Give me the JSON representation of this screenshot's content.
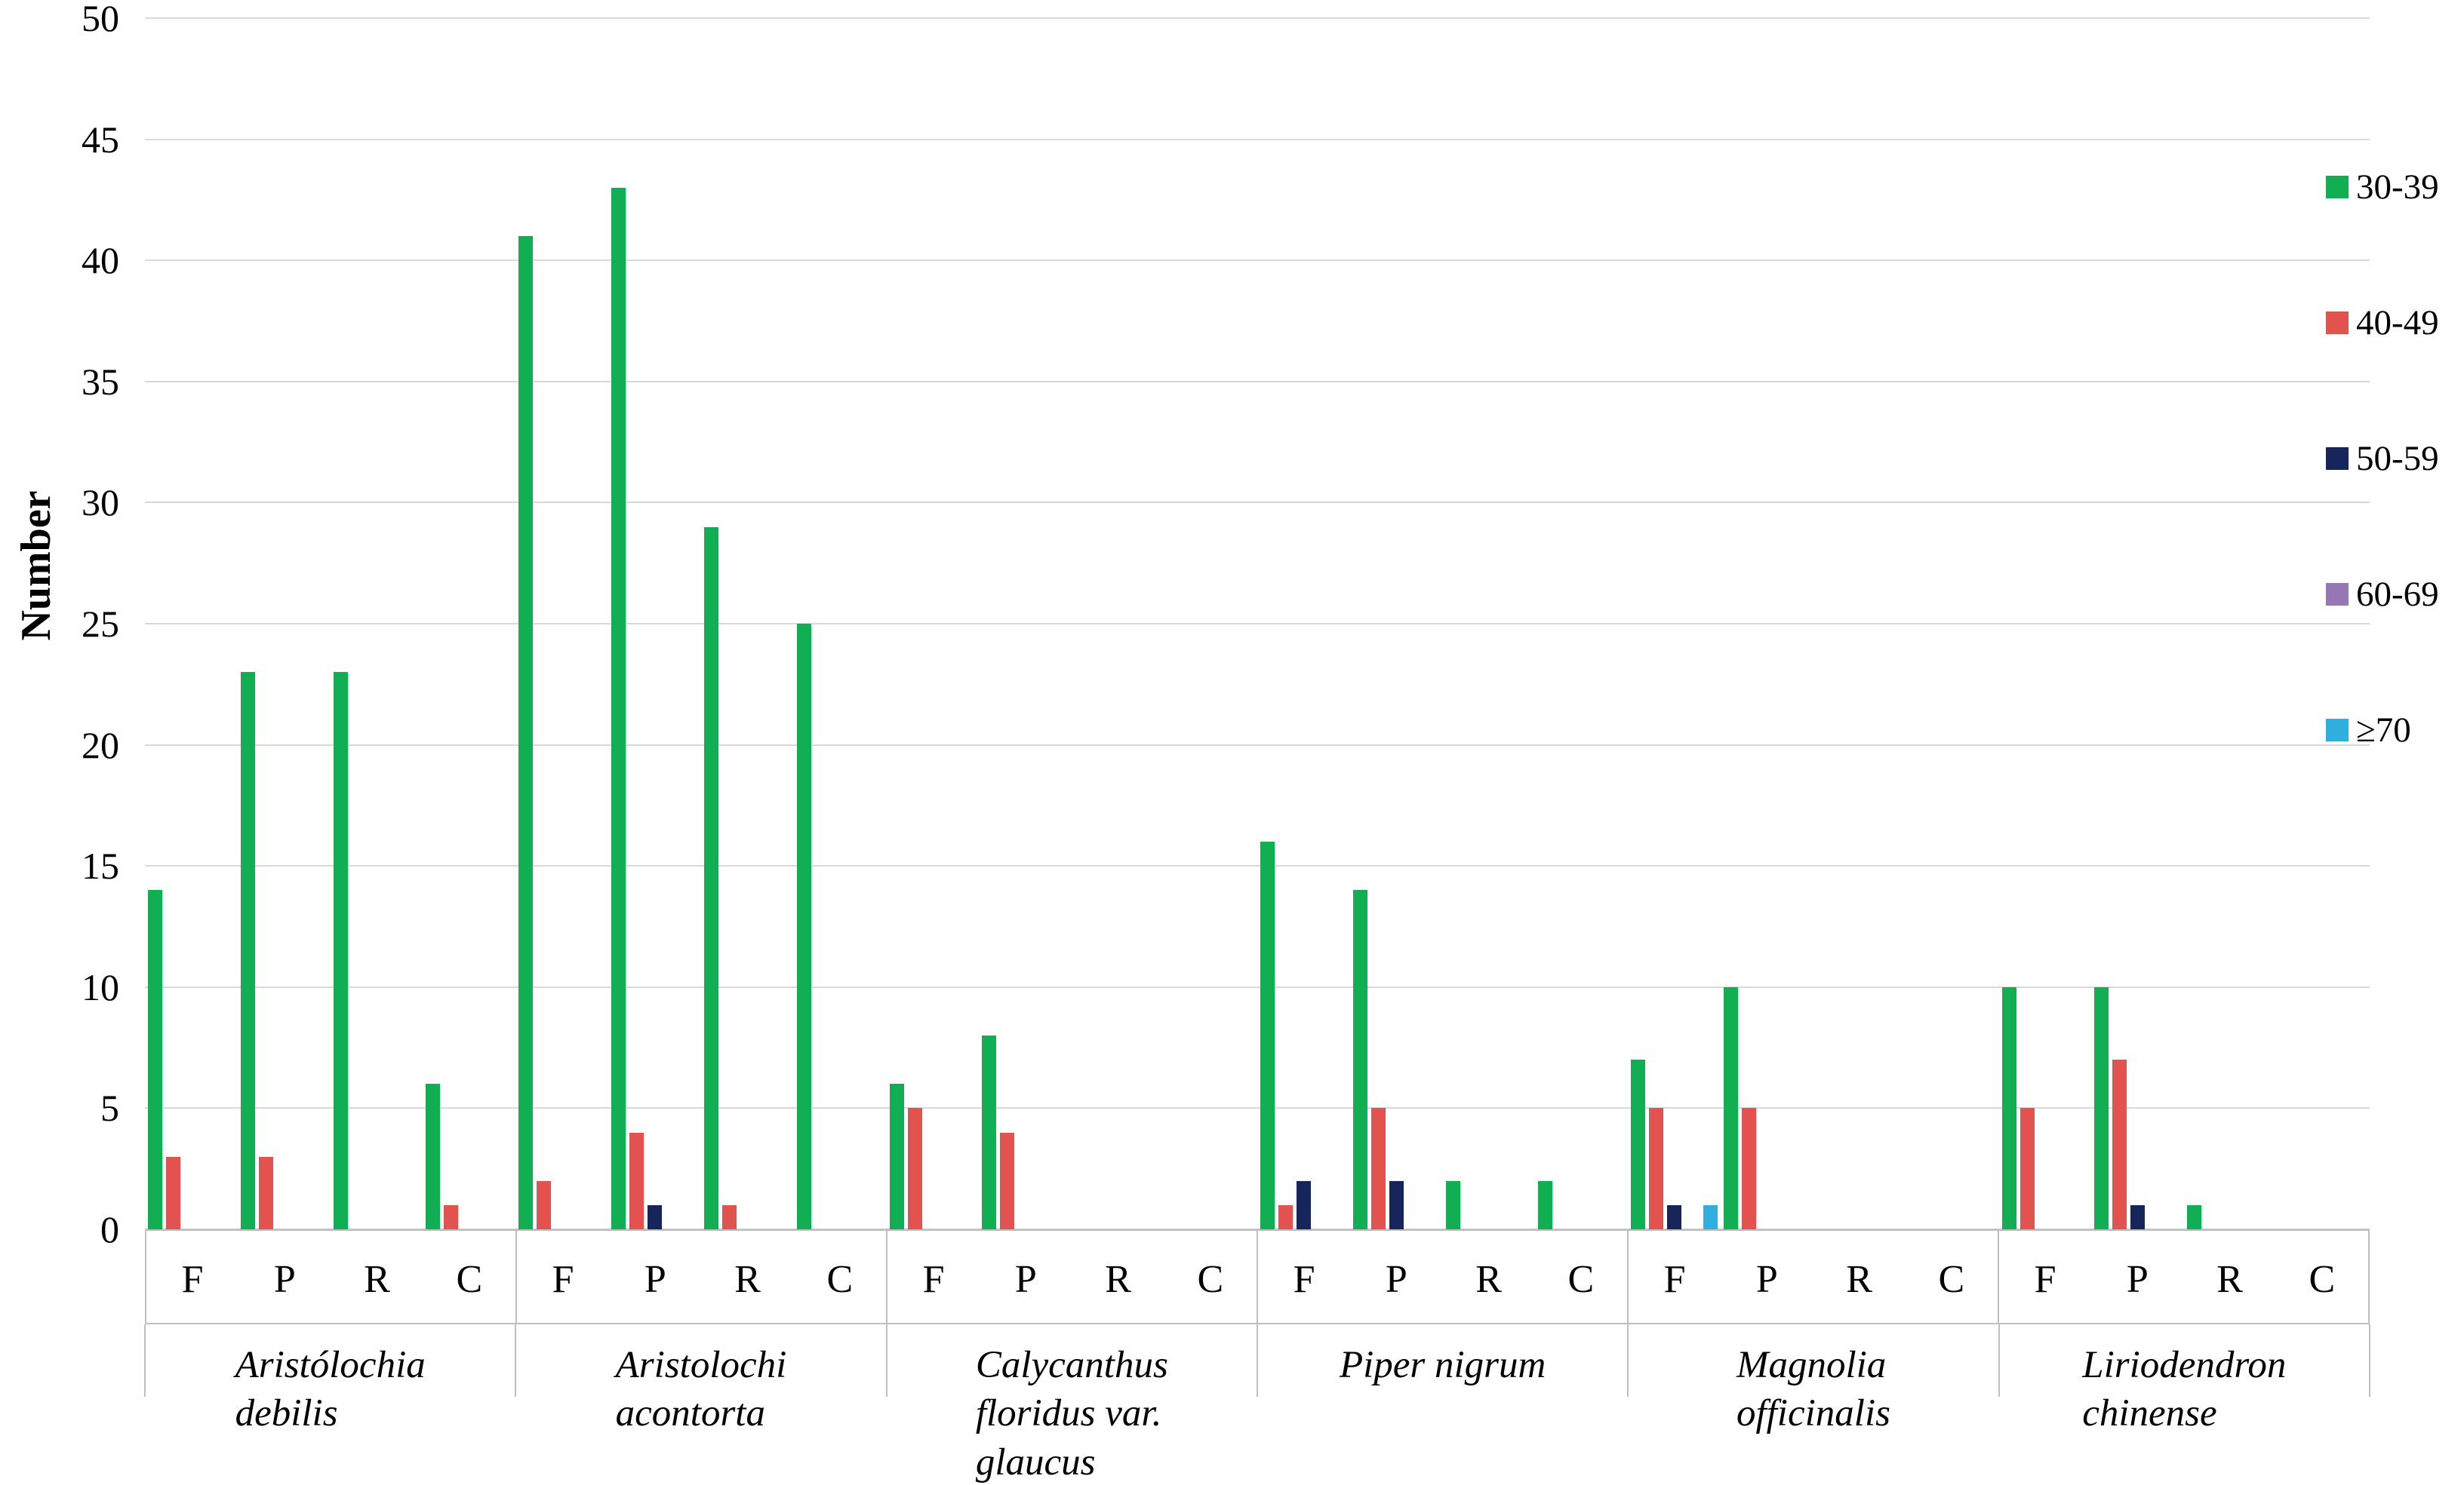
{
  "chart_data": {
    "type": "bar",
    "title": "",
    "ylabel": "Number",
    "ylim": [
      0,
      50
    ],
    "ytick_step": 5,
    "yticks": [
      "0",
      "5",
      "10",
      "15",
      "20",
      "25",
      "30",
      "35",
      "40",
      "45",
      "50"
    ],
    "grid": true,
    "legend_position": "right",
    "categories": [
      "F",
      "P",
      "R",
      "C"
    ],
    "series": [
      {
        "name": "30-39",
        "color": "#12ae53"
      },
      {
        "name": "40-49",
        "color": "#e2524e"
      },
      {
        "name": "50-59",
        "color": "#16265b"
      },
      {
        "name": "60-69",
        "color": "#9577b5"
      },
      {
        "name": "≥70",
        "color": "#2eafde"
      }
    ],
    "groups": [
      {
        "species": "Aristólochia debilis",
        "label_lines": [
          "Aristólochia",
          "debilis"
        ],
        "values": {
          "F": [
            14,
            3,
            0,
            0,
            0
          ],
          "P": [
            23,
            3,
            0,
            0,
            0
          ],
          "R": [
            23,
            0,
            0,
            0,
            0
          ],
          "C": [
            6,
            1,
            0,
            0,
            0
          ]
        }
      },
      {
        "species": "Aristolochi acontorta",
        "label_lines": [
          "Aristolochi",
          "acontorta"
        ],
        "values": {
          "F": [
            41,
            2,
            0,
            0,
            0
          ],
          "P": [
            43,
            4,
            1,
            0,
            0
          ],
          "R": [
            29,
            1,
            0,
            0,
            0
          ],
          "C": [
            25,
            0,
            0,
            0,
            0
          ]
        }
      },
      {
        "species": "Calycanthus floridus var. glaucus",
        "label_lines": [
          "Calycanthus",
          "floridus var.",
          "glaucus"
        ],
        "values": {
          "F": [
            6,
            5,
            0,
            0,
            0
          ],
          "P": [
            8,
            4,
            0,
            0,
            0
          ],
          "R": [
            0,
            0,
            0,
            0,
            0
          ],
          "C": [
            0,
            0,
            0,
            0,
            0
          ]
        }
      },
      {
        "species": "Piper nigrum",
        "label_lines": [
          "Piper nigrum"
        ],
        "values": {
          "F": [
            16,
            1,
            2,
            0,
            0
          ],
          "P": [
            14,
            5,
            2,
            0,
            0
          ],
          "R": [
            2,
            0,
            0,
            0,
            0
          ],
          "C": [
            2,
            0,
            0,
            0,
            0
          ]
        }
      },
      {
        "species": "Magnolia officinalis",
        "label_lines": [
          "Magnolia",
          "officinalis"
        ],
        "values": {
          "F": [
            7,
            5,
            1,
            0,
            1
          ],
          "P": [
            10,
            5,
            0,
            0,
            0
          ],
          "R": [
            0,
            0,
            0,
            0,
            0
          ],
          "C": [
            0,
            0,
            0,
            0,
            0
          ]
        }
      },
      {
        "species": "Liriodendron chinense",
        "label_lines": [
          "Liriodendron",
          "chinense"
        ],
        "values": {
          "F": [
            10,
            5,
            0,
            0,
            0
          ],
          "P": [
            10,
            7,
            1,
            0,
            0
          ],
          "R": [
            1,
            0,
            0,
            0,
            0
          ],
          "C": [
            0,
            0,
            0,
            0,
            0
          ]
        }
      }
    ]
  },
  "colors": {
    "gridline": "#d9d9d9",
    "baseline": "#c6c6c6",
    "axis_box": "#bfbfbf",
    "text": "#000000",
    "background": "#ffffff"
  }
}
